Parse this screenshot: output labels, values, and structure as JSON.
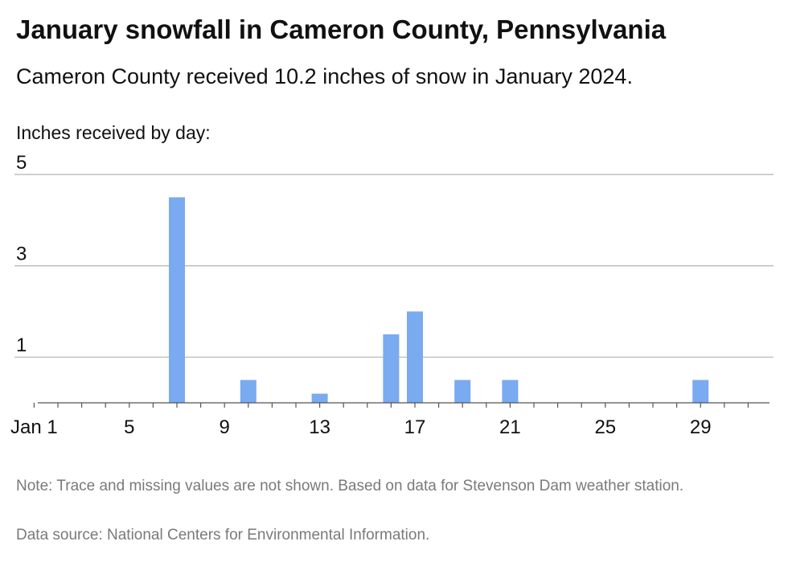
{
  "header": {
    "title": "January snowfall in Cameron County, Pennsylvania",
    "subtitle": "Cameron County received 10.2 inches of snow in January 2024.",
    "y_axis_caption": "Inches received by day:"
  },
  "footer": {
    "note": "Note: Trace and missing values are not shown. Based on data for Stevenson Dam weather station.",
    "source": "Data source: National Centers for Environmental Information."
  },
  "colors": {
    "bar": "#7aaaf0",
    "grid": "#b3b3b3",
    "baseline": "#555555"
  },
  "chart_data": {
    "type": "bar",
    "title": "January snowfall in Cameron County, Pennsylvania",
    "ylabel": "Inches received by day:",
    "xlabel": "",
    "x": [
      1,
      2,
      3,
      4,
      5,
      6,
      7,
      8,
      9,
      10,
      11,
      12,
      13,
      14,
      15,
      16,
      17,
      18,
      19,
      20,
      21,
      22,
      23,
      24,
      25,
      26,
      27,
      28,
      29,
      30,
      31
    ],
    "values": [
      0,
      0,
      0,
      0,
      0,
      0,
      4.5,
      0,
      0,
      0.5,
      0,
      0,
      0.2,
      0,
      0,
      1.5,
      2,
      0,
      0.5,
      0,
      0.5,
      0,
      0,
      0,
      0,
      0,
      0,
      0,
      0.5,
      0,
      0
    ],
    "x_ticks": [
      1,
      5,
      9,
      13,
      17,
      21,
      25,
      29
    ],
    "x_tick_labels": [
      "Jan 1",
      "5",
      "9",
      "13",
      "17",
      "21",
      "25",
      "29"
    ],
    "y_ticks": [
      1,
      3,
      5
    ],
    "y_tick_labels": [
      "1",
      "3",
      "5"
    ],
    "ylim": [
      0,
      5
    ],
    "xlim": [
      0,
      32
    ],
    "grid": true,
    "legend": "none"
  }
}
